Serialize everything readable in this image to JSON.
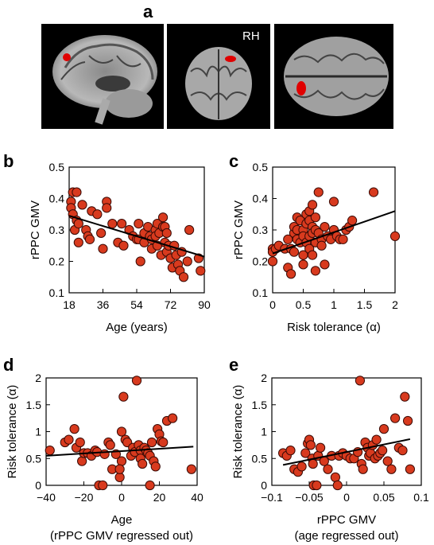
{
  "panels": {
    "a": "a",
    "b": "b",
    "c": "c",
    "d": "d",
    "e": "e"
  },
  "brain": {
    "rh_label": "RH"
  },
  "colors": {
    "point_fill": "#d83a1e",
    "point_stroke": "#3a0a05",
    "fit_line": "#000000"
  },
  "chart_data": [
    {
      "id": "b",
      "type": "scatter",
      "xlabel": "Age (years)",
      "ylabel": "rPPC GMV",
      "xlim": [
        18,
        90
      ],
      "ylim": [
        0.1,
        0.5
      ],
      "xticks": [
        18,
        36,
        54,
        72,
        90
      ],
      "yticks": [
        0.1,
        0.2,
        0.3,
        0.4,
        0.5
      ],
      "ytick_labels": [
        "0.1",
        "0.2",
        "0.3",
        "0.4",
        "0.5"
      ],
      "fit": [
        [
          18,
          0.345
        ],
        [
          90,
          0.215
        ]
      ],
      "points": [
        [
          19,
          0.39
        ],
        [
          19,
          0.37
        ],
        [
          20,
          0.42
        ],
        [
          20,
          0.35
        ],
        [
          21,
          0.3
        ],
        [
          22,
          0.42
        ],
        [
          22,
          0.33
        ],
        [
          23,
          0.32
        ],
        [
          23,
          0.26
        ],
        [
          25,
          0.38
        ],
        [
          27,
          0.3
        ],
        [
          28,
          0.28
        ],
        [
          29,
          0.27
        ],
        [
          30,
          0.36
        ],
        [
          33,
          0.35
        ],
        [
          35,
          0.29
        ],
        [
          36,
          0.24
        ],
        [
          38,
          0.39
        ],
        [
          38,
          0.37
        ],
        [
          41,
          0.32
        ],
        [
          44,
          0.26
        ],
        [
          46,
          0.32
        ],
        [
          47,
          0.25
        ],
        [
          50,
          0.3
        ],
        [
          52,
          0.28
        ],
        [
          54,
          0.27
        ],
        [
          55,
          0.32
        ],
        [
          55,
          0.27
        ],
        [
          56,
          0.2
        ],
        [
          58,
          0.29
        ],
        [
          58,
          0.26
        ],
        [
          60,
          0.31
        ],
        [
          61,
          0.28
        ],
        [
          62,
          0.27
        ],
        [
          62,
          0.24
        ],
        [
          64,
          0.3
        ],
        [
          64,
          0.28
        ],
        [
          65,
          0.32
        ],
        [
          65,
          0.25
        ],
        [
          66,
          0.29
        ],
        [
          67,
          0.22
        ],
        [
          68,
          0.34
        ],
        [
          68,
          0.31
        ],
        [
          69,
          0.31
        ],
        [
          69,
          0.26
        ],
        [
          70,
          0.29
        ],
        [
          70,
          0.23
        ],
        [
          71,
          0.25
        ],
        [
          72,
          0.21
        ],
        [
          73,
          0.18
        ],
        [
          74,
          0.25
        ],
        [
          75,
          0.22
        ],
        [
          76,
          0.19
        ],
        [
          77,
          0.17
        ],
        [
          78,
          0.23
        ],
        [
          79,
          0.15
        ],
        [
          81,
          0.2
        ],
        [
          82,
          0.3
        ],
        [
          87,
          0.21
        ],
        [
          88,
          0.17
        ]
      ]
    },
    {
      "id": "c",
      "type": "scatter",
      "xlabel": "Risk tolerance (α)",
      "ylabel": "rPPC GMV",
      "xlim": [
        0,
        2
      ],
      "ylim": [
        0.1,
        0.5
      ],
      "xticks": [
        0,
        0.5,
        1,
        1.5,
        2
      ],
      "yticks": [
        0.1,
        0.2,
        0.3,
        0.4,
        0.5
      ],
      "xtick_labels": [
        "0",
        "0.5",
        "1",
        "1.5",
        "2"
      ],
      "ytick_labels": [
        "0.1",
        "0.2",
        "0.3",
        "0.4",
        "0.5"
      ],
      "fit": [
        [
          0,
          0.225
        ],
        [
          2,
          0.36
        ]
      ],
      "points": [
        [
          0,
          0.24
        ],
        [
          0,
          0.23
        ],
        [
          0,
          0.2
        ],
        [
          0.05,
          0.24
        ],
        [
          0.1,
          0.25
        ],
        [
          0.2,
          0.24
        ],
        [
          0.25,
          0.27
        ],
        [
          0.25,
          0.18
        ],
        [
          0.3,
          0.16
        ],
        [
          0.3,
          0.24
        ],
        [
          0.35,
          0.29
        ],
        [
          0.35,
          0.23
        ],
        [
          0.35,
          0.31
        ],
        [
          0.4,
          0.34
        ],
        [
          0.4,
          0.3
        ],
        [
          0.4,
          0.27
        ],
        [
          0.45,
          0.33
        ],
        [
          0.45,
          0.26
        ],
        [
          0.5,
          0.3
        ],
        [
          0.5,
          0.28
        ],
        [
          0.5,
          0.22
        ],
        [
          0.5,
          0.19
        ],
        [
          0.55,
          0.35
        ],
        [
          0.55,
          0.32
        ],
        [
          0.55,
          0.26
        ],
        [
          0.6,
          0.36
        ],
        [
          0.6,
          0.33
        ],
        [
          0.6,
          0.28
        ],
        [
          0.6,
          0.24
        ],
        [
          0.65,
          0.38
        ],
        [
          0.65,
          0.31
        ],
        [
          0.65,
          0.29
        ],
        [
          0.65,
          0.22
        ],
        [
          0.7,
          0.34
        ],
        [
          0.7,
          0.3
        ],
        [
          0.7,
          0.26
        ],
        [
          0.7,
          0.17
        ],
        [
          0.75,
          0.42
        ],
        [
          0.75,
          0.29
        ],
        [
          0.8,
          0.27
        ],
        [
          0.8,
          0.25
        ],
        [
          0.85,
          0.31
        ],
        [
          0.85,
          0.19
        ],
        [
          0.9,
          0.28
        ],
        [
          0.95,
          0.27
        ],
        [
          1.0,
          0.39
        ],
        [
          1.0,
          0.3
        ],
        [
          1.05,
          0.28
        ],
        [
          1.1,
          0.27
        ],
        [
          1.15,
          0.27
        ],
        [
          1.2,
          0.3
        ],
        [
          1.25,
          0.31
        ],
        [
          1.3,
          0.33
        ],
        [
          1.65,
          0.42
        ],
        [
          2.0,
          0.28
        ]
      ]
    },
    {
      "id": "d",
      "type": "scatter",
      "xlabel": "Age",
      "xlabel2": "(rPPC GMV regressed out)",
      "ylabel": "Risk tolerance (α)",
      "xlim": [
        -40,
        40
      ],
      "ylim": [
        0,
        2
      ],
      "xticks": [
        -40,
        -20,
        0,
        20,
        40
      ],
      "yticks": [
        0,
        0.5,
        1,
        1.5,
        2
      ],
      "xtick_labels": [
        "−40",
        "−20",
        "0",
        "20",
        "40"
      ],
      "ytick_labels": [
        "0",
        "0.5",
        "1",
        "1.5",
        "2"
      ],
      "fit": [
        [
          -40,
          0.55
        ],
        [
          38,
          0.72
        ]
      ],
      "points": [
        [
          -38,
          0.65
        ],
        [
          -30,
          0.8
        ],
        [
          -28,
          0.85
        ],
        [
          -25,
          1.05
        ],
        [
          -24,
          0.7
        ],
        [
          -22,
          0.8
        ],
        [
          -21,
          0.45
        ],
        [
          -20,
          0.6
        ],
        [
          -18,
          0.6
        ],
        [
          -16,
          0.55
        ],
        [
          -14,
          0.65
        ],
        [
          -13,
          0.62
        ],
        [
          -12,
          0.0
        ],
        [
          -10,
          0.0
        ],
        [
          -9,
          0.58
        ],
        [
          -7,
          0.8
        ],
        [
          -6,
          0.75
        ],
        [
          -5,
          0.3
        ],
        [
          -3,
          0.58
        ],
        [
          -1,
          0.15
        ],
        [
          0,
          0.45
        ],
        [
          0,
          1.0
        ],
        [
          2,
          0.85
        ],
        [
          3,
          0.8
        ],
        [
          5,
          0.55
        ],
        [
          6,
          0.7
        ],
        [
          7,
          0.62
        ],
        [
          8,
          1.95
        ],
        [
          9,
          0.75
        ],
        [
          10,
          0.65
        ],
        [
          10,
          0.5
        ],
        [
          11,
          0.4
        ],
        [
          12,
          0.7
        ],
        [
          13,
          0.65
        ],
        [
          14,
          0.6
        ],
        [
          15,
          0.55
        ],
        [
          15,
          0.0
        ],
        [
          16,
          0.8
        ],
        [
          17,
          0.45
        ],
        [
          18,
          0.35
        ],
        [
          19,
          1.05
        ],
        [
          20,
          0.95
        ],
        [
          21,
          0.82
        ],
        [
          22,
          0.8
        ],
        [
          24,
          1.2
        ],
        [
          27,
          1.25
        ],
        [
          37,
          0.3
        ],
        [
          -1,
          0.3
        ],
        [
          1,
          1.65
        ]
      ]
    },
    {
      "id": "e",
      "type": "scatter",
      "xlabel": "rPPC GMV",
      "xlabel2": "(age regressed out)",
      "ylabel": "Risk tolerance (α)",
      "xlim": [
        -0.1,
        0.1
      ],
      "ylim": [
        0,
        2
      ],
      "xticks": [
        -0.1,
        -0.05,
        0,
        0.05,
        0.1
      ],
      "yticks": [
        0,
        0.5,
        1,
        1.5,
        2
      ],
      "xtick_labels": [
        "−0.1",
        "−0.05",
        "0",
        "0.05",
        "0.1"
      ],
      "ytick_labels": [
        "0",
        "0.5",
        "1",
        "1.5",
        "2"
      ],
      "fit": [
        [
          -0.085,
          0.38
        ],
        [
          0.085,
          0.86
        ]
      ],
      "points": [
        [
          -0.085,
          0.6
        ],
        [
          -0.08,
          0.55
        ],
        [
          -0.075,
          0.65
        ],
        [
          -0.07,
          0.3
        ],
        [
          -0.065,
          0.25
        ],
        [
          -0.06,
          0.35
        ],
        [
          -0.055,
          0.6
        ],
        [
          -0.052,
          0.78
        ],
        [
          -0.05,
          0.85
        ],
        [
          -0.048,
          0.75
        ],
        [
          -0.046,
          0.5
        ],
        [
          -0.045,
          0.4
        ],
        [
          -0.044,
          0.0
        ],
        [
          -0.04,
          0.0
        ],
        [
          -0.038,
          0.55
        ],
        [
          -0.035,
          0.7
        ],
        [
          -0.03,
          0.45
        ],
        [
          -0.025,
          0.3
        ],
        [
          -0.02,
          0.55
        ],
        [
          -0.015,
          0.15
        ],
        [
          -0.012,
          0.0
        ],
        [
          -0.01,
          0.55
        ],
        [
          -0.005,
          0.6
        ],
        [
          0,
          0.55
        ],
        [
          0.005,
          0.5
        ],
        [
          0.01,
          0.5
        ],
        [
          0.015,
          0.62
        ],
        [
          0.018,
          1.95
        ],
        [
          0.02,
          0.4
        ],
        [
          0.022,
          0.3
        ],
        [
          0.025,
          0.8
        ],
        [
          0.028,
          0.7
        ],
        [
          0.03,
          0.55
        ],
        [
          0.032,
          0.6
        ],
        [
          0.035,
          0.75
        ],
        [
          0.038,
          0.5
        ],
        [
          0.04,
          0.85
        ],
        [
          0.042,
          0.55
        ],
        [
          0.045,
          0.6
        ],
        [
          0.048,
          0.65
        ],
        [
          0.05,
          1.05
        ],
        [
          0.055,
          0.45
        ],
        [
          0.06,
          0.3
        ],
        [
          0.065,
          1.25
        ],
        [
          0.07,
          0.7
        ],
        [
          0.075,
          0.65
        ],
        [
          0.078,
          1.65
        ],
        [
          0.082,
          1.2
        ],
        [
          0.085,
          0.3
        ]
      ]
    }
  ]
}
